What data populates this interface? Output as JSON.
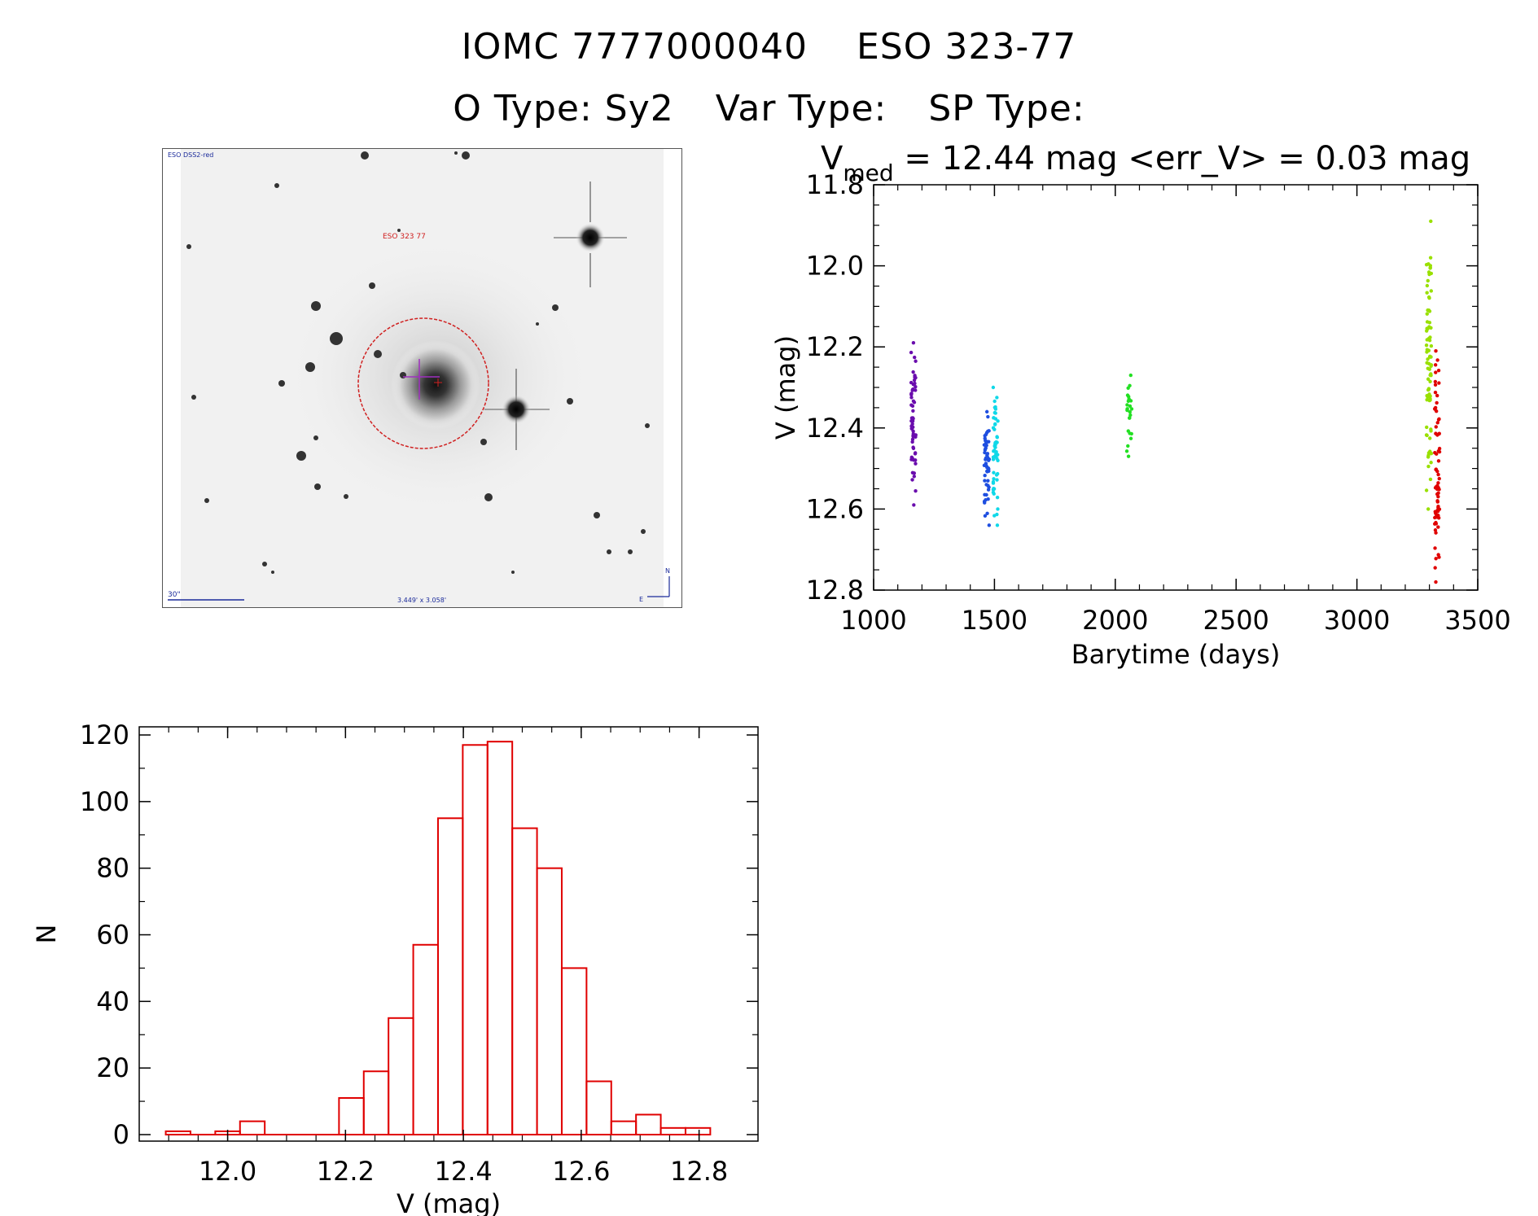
{
  "header": {
    "line1_id": "IOMC 7777000040",
    "line1_name": "ESO 323-77",
    "otype": "O Type: Sy2",
    "vartype": "Var Type:",
    "sptype": "SP Type:"
  },
  "image": {
    "survey_label": "ESO DSS2-red",
    "object_label": "ESO 323 77",
    "scale_label": "30\"",
    "fov_label": "3.449' x 3.058'",
    "north_label": "N",
    "east_label": "E"
  },
  "lightcurve": {
    "stat_v": "V",
    "stat_sub": "med",
    "stat_rest": " = 12.44 mag <err_V> = 0.03 mag"
  },
  "chart_data": [
    {
      "type": "scatter",
      "xlabel": "Barytime (days)",
      "ylabel": "V (mag)",
      "xlim": [
        1000,
        3500
      ],
      "ylim": [
        12.8,
        11.8
      ],
      "y_inverted": true,
      "xticks": [
        "1000",
        "1500",
        "2000",
        "2500",
        "3000",
        "3500"
      ],
      "yticks": [
        "11.8",
        "12.0",
        "12.2",
        "12.4",
        "12.6",
        "12.8"
      ],
      "series": [
        {
          "color": "#6a0dad",
          "x": 1165,
          "ymin": 12.19,
          "ymax": 12.59,
          "n": 60
        },
        {
          "color": "#1f4fe0",
          "x": 1468,
          "ymin": 12.36,
          "ymax": 12.64,
          "n": 55
        },
        {
          "color": "#10d8e8",
          "x": 1505,
          "ymin": 12.3,
          "ymax": 12.64,
          "n": 55
        },
        {
          "color": "#22e022",
          "x": 2058,
          "ymin": 12.27,
          "ymax": 12.47,
          "n": 25
        },
        {
          "color": "#99e000",
          "x": 3298,
          "ymin": 11.89,
          "ymax": 12.6,
          "n": 80
        },
        {
          "color": "#e00000",
          "x": 3332,
          "ymin": 12.21,
          "ymax": 12.78,
          "n": 70
        }
      ]
    },
    {
      "type": "bar",
      "xlabel": "V (mag)",
      "ylabel": "N",
      "xlim": [
        11.85,
        12.9
      ],
      "ylim": [
        0,
        120
      ],
      "xticks": [
        "12.0",
        "12.2",
        "12.4",
        "12.6",
        "12.8"
      ],
      "yticks": [
        "0",
        "20",
        "40",
        "60",
        "80",
        "100",
        "120"
      ],
      "bin_width": 0.042,
      "bin_starts": [
        11.895,
        11.937,
        11.979,
        12.021,
        12.063,
        12.105,
        12.147,
        12.189,
        12.231,
        12.273,
        12.315,
        12.357,
        12.399,
        12.441,
        12.483,
        12.525,
        12.567,
        12.609,
        12.651,
        12.693,
        12.735,
        12.777
      ],
      "values": [
        1,
        0,
        1,
        4,
        0,
        0,
        0,
        11,
        19,
        35,
        57,
        95,
        117,
        118,
        92,
        80,
        50,
        16,
        4,
        6,
        2,
        2
      ]
    }
  ]
}
